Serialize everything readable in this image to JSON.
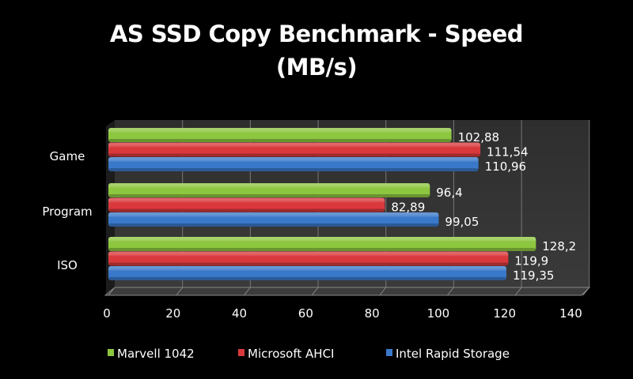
{
  "chart_data": {
    "type": "bar",
    "orientation": "horizontal",
    "title": "AS SSD  Copy Benchmark - Speed",
    "subtitle": "(MB/s)",
    "categories": [
      "Game",
      "Program",
      "ISO"
    ],
    "series": [
      {
        "name": "Marvell 1042",
        "color": "#8dc63f",
        "values": [
          102.88,
          96.4,
          128.2
        ],
        "labels": [
          "102,88",
          "96,4",
          "128,2"
        ]
      },
      {
        "name": "Microsoft AHCI",
        "color": "#d9393c",
        "values": [
          111.54,
          82.89,
          119.9
        ],
        "labels": [
          "111,54",
          "82,89",
          "119,9"
        ]
      },
      {
        "name": "Intel Rapid Storage",
        "color": "#3a78c9",
        "values": [
          110.96,
          99.05,
          119.35
        ],
        "labels": [
          "110,96",
          "99,05",
          "119,35"
        ]
      }
    ],
    "xlim": [
      0,
      140
    ],
    "xticks": [
      "0",
      "20",
      "40",
      "60",
      "80",
      "100",
      "120",
      "140"
    ],
    "grid": true,
    "legend": "bottom",
    "background": "#000000"
  }
}
